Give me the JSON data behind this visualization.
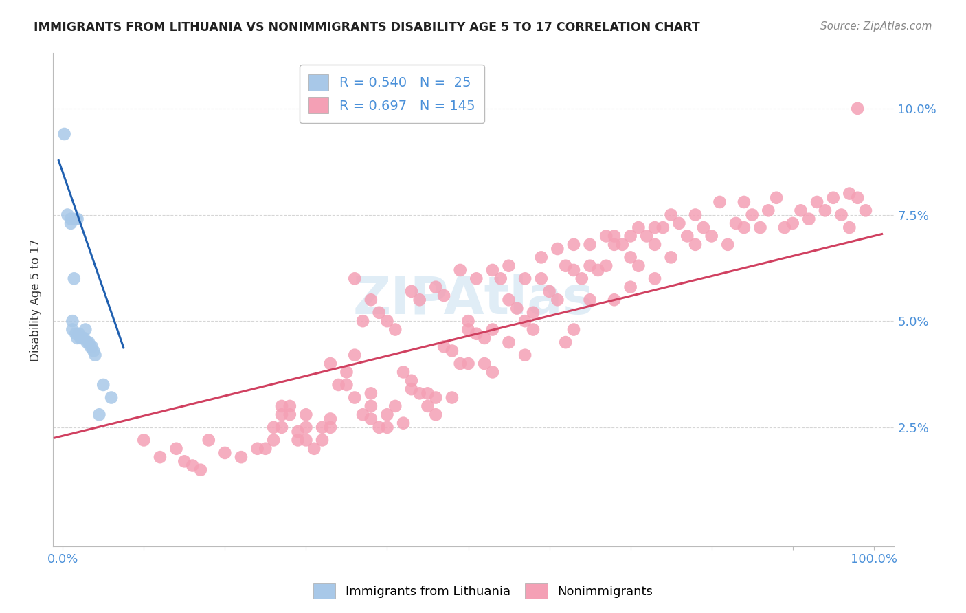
{
  "title": "IMMIGRANTS FROM LITHUANIA VS NONIMMIGRANTS DISABILITY AGE 5 TO 17 CORRELATION CHART",
  "source": "Source: ZipAtlas.com",
  "ylabel": "Disability Age 5 to 17",
  "r_blue": 0.54,
  "n_blue": 25,
  "r_pink": 0.697,
  "n_pink": 145,
  "blue_color": "#a8c8e8",
  "pink_color": "#f4a0b5",
  "blue_line_color": "#2060b0",
  "pink_line_color": "#d04060",
  "title_color": "#222222",
  "source_color": "#888888",
  "axis_label_color": "#4a90d9",
  "ylabel_color": "#333333",
  "legend_text_color": "#4a90d9",
  "background_color": "#ffffff",
  "grid_color": "#cccccc",
  "watermark_color": "#c8dff0",
  "blue_line_slope": -0.55,
  "blue_line_intercept": 0.085,
  "pink_line_slope": 0.047,
  "pink_line_intercept": 0.023,
  "blue_points_x": [
    0.002,
    0.006,
    0.01,
    0.01,
    0.012,
    0.012,
    0.014,
    0.016,
    0.016,
    0.018,
    0.018,
    0.02,
    0.022,
    0.024,
    0.026,
    0.028,
    0.03,
    0.032,
    0.034,
    0.036,
    0.038,
    0.04,
    0.045,
    0.05,
    0.06
  ],
  "blue_points_y": [
    0.094,
    0.075,
    0.074,
    0.073,
    0.05,
    0.048,
    0.06,
    0.074,
    0.047,
    0.074,
    0.046,
    0.047,
    0.046,
    0.046,
    0.046,
    0.048,
    0.045,
    0.045,
    0.044,
    0.044,
    0.043,
    0.042,
    0.028,
    0.035,
    0.032
  ],
  "pink_points_x": [
    0.1,
    0.12,
    0.14,
    0.15,
    0.16,
    0.17,
    0.18,
    0.2,
    0.22,
    0.24,
    0.26,
    0.27,
    0.28,
    0.29,
    0.3,
    0.3,
    0.32,
    0.33,
    0.33,
    0.34,
    0.35,
    0.36,
    0.37,
    0.38,
    0.38,
    0.38,
    0.39,
    0.4,
    0.4,
    0.41,
    0.42,
    0.42,
    0.43,
    0.43,
    0.44,
    0.45,
    0.45,
    0.46,
    0.46,
    0.47,
    0.48,
    0.48,
    0.49,
    0.5,
    0.5,
    0.5,
    0.51,
    0.52,
    0.52,
    0.53,
    0.53,
    0.54,
    0.55,
    0.55,
    0.56,
    0.57,
    0.57,
    0.58,
    0.58,
    0.59,
    0.6,
    0.61,
    0.62,
    0.62,
    0.63,
    0.63,
    0.64,
    0.65,
    0.65,
    0.66,
    0.67,
    0.67,
    0.68,
    0.68,
    0.69,
    0.7,
    0.7,
    0.71,
    0.71,
    0.72,
    0.73,
    0.73,
    0.74,
    0.75,
    0.75,
    0.76,
    0.77,
    0.78,
    0.78,
    0.79,
    0.8,
    0.81,
    0.82,
    0.83,
    0.84,
    0.84,
    0.85,
    0.86,
    0.87,
    0.88,
    0.89,
    0.9,
    0.91,
    0.92,
    0.93,
    0.94,
    0.95,
    0.96,
    0.97,
    0.97,
    0.98,
    0.99,
    0.35,
    0.36,
    0.36,
    0.37,
    0.27,
    0.27,
    0.28,
    0.29,
    0.3,
    0.31,
    0.32,
    0.33,
    0.25,
    0.26,
    0.38,
    0.39,
    0.4,
    0.41,
    0.43,
    0.44,
    0.46,
    0.47,
    0.49,
    0.51,
    0.53,
    0.55,
    0.57,
    0.59,
    0.61,
    0.63,
    0.65,
    0.68,
    0.7,
    0.73,
    0.98
  ],
  "pink_points_y": [
    0.022,
    0.018,
    0.02,
    0.017,
    0.016,
    0.015,
    0.022,
    0.019,
    0.018,
    0.02,
    0.025,
    0.028,
    0.03,
    0.022,
    0.025,
    0.028,
    0.025,
    0.04,
    0.027,
    0.035,
    0.038,
    0.032,
    0.028,
    0.033,
    0.03,
    0.027,
    0.025,
    0.028,
    0.025,
    0.03,
    0.026,
    0.038,
    0.036,
    0.034,
    0.033,
    0.033,
    0.03,
    0.032,
    0.028,
    0.044,
    0.043,
    0.032,
    0.04,
    0.05,
    0.048,
    0.04,
    0.047,
    0.046,
    0.04,
    0.048,
    0.038,
    0.06,
    0.045,
    0.055,
    0.053,
    0.05,
    0.042,
    0.052,
    0.048,
    0.06,
    0.057,
    0.055,
    0.063,
    0.045,
    0.062,
    0.048,
    0.06,
    0.063,
    0.055,
    0.062,
    0.07,
    0.063,
    0.068,
    0.055,
    0.068,
    0.065,
    0.058,
    0.072,
    0.063,
    0.07,
    0.068,
    0.06,
    0.072,
    0.075,
    0.065,
    0.073,
    0.07,
    0.068,
    0.075,
    0.072,
    0.07,
    0.078,
    0.068,
    0.073,
    0.078,
    0.072,
    0.075,
    0.072,
    0.076,
    0.079,
    0.072,
    0.073,
    0.076,
    0.074,
    0.078,
    0.076,
    0.079,
    0.075,
    0.08,
    0.072,
    0.079,
    0.076,
    0.035,
    0.042,
    0.06,
    0.05,
    0.025,
    0.03,
    0.028,
    0.024,
    0.022,
    0.02,
    0.022,
    0.025,
    0.02,
    0.022,
    0.055,
    0.052,
    0.05,
    0.048,
    0.057,
    0.055,
    0.058,
    0.056,
    0.062,
    0.06,
    0.062,
    0.063,
    0.06,
    0.065,
    0.067,
    0.068,
    0.068,
    0.07,
    0.07,
    0.072,
    0.1
  ]
}
